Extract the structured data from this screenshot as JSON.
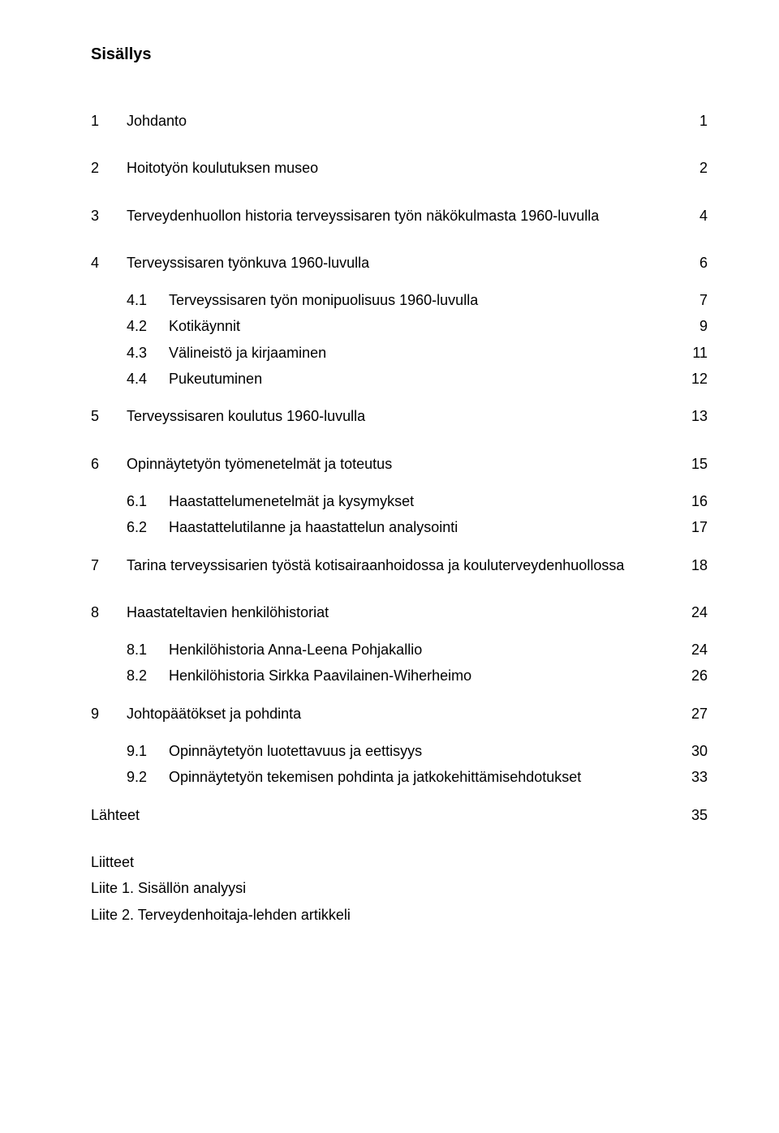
{
  "title": "Sisällys",
  "entries": [
    {
      "type": "top",
      "num": "1",
      "text": "Johdanto",
      "page": "1"
    },
    {
      "type": "spacer",
      "size": "lg"
    },
    {
      "type": "top",
      "num": "2",
      "text": "Hoitotyön koulutuksen museo",
      "page": "2"
    },
    {
      "type": "spacer",
      "size": "lg"
    },
    {
      "type": "top",
      "num": "3",
      "text": "Terveydenhuollon historia terveyssisaren työn näkökulmasta 1960-luvulla",
      "page": "4"
    },
    {
      "type": "spacer",
      "size": "lg"
    },
    {
      "type": "top",
      "num": "4",
      "text": "Terveyssisaren työnkuva 1960-luvulla",
      "page": "6"
    },
    {
      "type": "spacer",
      "size": "md"
    },
    {
      "type": "sub",
      "num": "4.1",
      "text": "Terveyssisaren työn monipuolisuus 1960-luvulla",
      "page": "7"
    },
    {
      "type": "sub",
      "num": "4.2",
      "text": "Kotikäynnit",
      "page": "9"
    },
    {
      "type": "sub",
      "num": "4.3",
      "text": "Välineistö ja kirjaaminen",
      "page": "11"
    },
    {
      "type": "sub",
      "num": "4.4",
      "text": "Pukeutuminen",
      "page": "12"
    },
    {
      "type": "spacer",
      "size": "md"
    },
    {
      "type": "top",
      "num": "5",
      "text": "Terveyssisaren koulutus 1960-luvulla",
      "page": "13"
    },
    {
      "type": "spacer",
      "size": "lg"
    },
    {
      "type": "top",
      "num": "6",
      "text": "Opinnäytetyön työmenetelmät ja toteutus",
      "page": "15"
    },
    {
      "type": "spacer",
      "size": "md"
    },
    {
      "type": "sub",
      "num": "6.1",
      "text": "Haastattelumenetelmät ja kysymykset",
      "page": "16"
    },
    {
      "type": "sub",
      "num": "6.2",
      "text": "Haastattelutilanne ja haastattelun analysointi",
      "page": "17"
    },
    {
      "type": "spacer",
      "size": "md"
    },
    {
      "type": "top",
      "num": "7",
      "text": "Tarina terveyssisarien työstä kotisairaanhoidossa ja kouluterveydenhuollossa",
      "page": "18"
    },
    {
      "type": "spacer",
      "size": "lg"
    },
    {
      "type": "top",
      "num": "8",
      "text": "Haastateltavien henkilöhistoriat",
      "page": "24"
    },
    {
      "type": "spacer",
      "size": "md"
    },
    {
      "type": "sub",
      "num": "8.1",
      "text": "Henkilöhistoria Anna-Leena Pohjakallio",
      "page": "24"
    },
    {
      "type": "sub",
      "num": "8.2",
      "text": "Henkilöhistoria Sirkka Paavilainen-Wiherheimo",
      "page": "26"
    },
    {
      "type": "spacer",
      "size": "md"
    },
    {
      "type": "top",
      "num": "9",
      "text": "Johtopäätökset ja pohdinta",
      "page": "27"
    },
    {
      "type": "spacer",
      "size": "md"
    },
    {
      "type": "sub",
      "num": "9.1",
      "text": "Opinnäytetyön luotettavuus ja eettisyys",
      "page": "30"
    },
    {
      "type": "sub",
      "num": "9.2",
      "text": "Opinnäytetyön tekemisen pohdinta ja jatkokehittämisehdotukset",
      "page": "33"
    },
    {
      "type": "spacer",
      "size": "md"
    },
    {
      "type": "plain",
      "text": "Lähteet",
      "page": "35"
    },
    {
      "type": "spacer",
      "size": "lg"
    },
    {
      "type": "plain",
      "text": "Liitteet",
      "page": ""
    },
    {
      "type": "plain",
      "text": "Liite 1. Sisällön analyysi",
      "page": ""
    },
    {
      "type": "plain",
      "text": "Liite 2. Terveydenhoitaja-lehden artikkeli",
      "page": ""
    }
  ]
}
